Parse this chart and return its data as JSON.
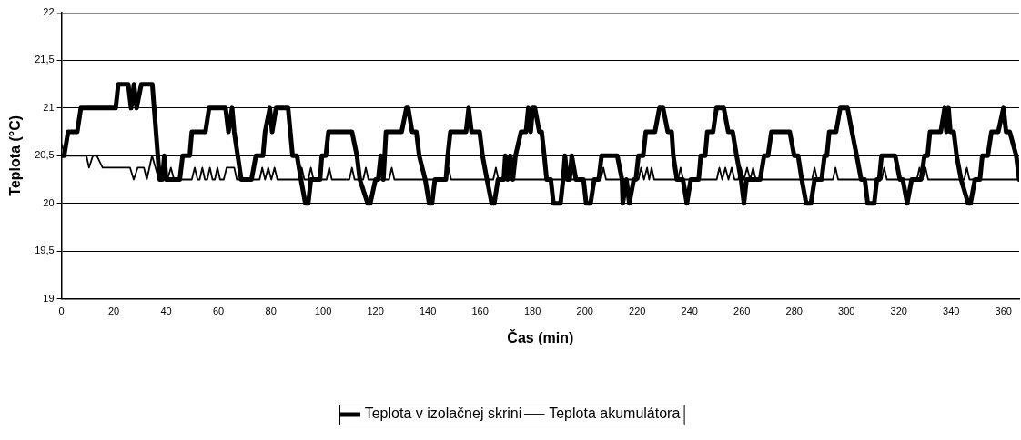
{
  "chart_data": {
    "type": "line",
    "xlabel": "Čas (min)",
    "ylabel": "Teplota (°C)",
    "xlim": [
      0,
      366
    ],
    "xticks": [
      0,
      20,
      40,
      60,
      80,
      100,
      120,
      140,
      160,
      180,
      200,
      220,
      240,
      260,
      280,
      300,
      320,
      340,
      360
    ],
    "ylim": [
      19,
      22
    ],
    "yticks": [
      19,
      {
        "value": 19.5,
        "label": "19,5"
      },
      20,
      {
        "value": 20.5,
        "label": "20,5"
      },
      21,
      {
        "value": 21.5,
        "label": "21,5"
      },
      22
    ],
    "grid": "y",
    "legend": "bottom",
    "marker": "none",
    "line_style": "solid",
    "series": [
      {
        "name": "Teplota v izolačnej skrini",
        "color": "#000000",
        "x": [
          0,
          1,
          2.5,
          6,
          7.4,
          20.7,
          21.7,
          25.5,
          26.6,
          27.7,
          28.7,
          30.5,
          34.7,
          37.5,
          38.5,
          39.3,
          40,
          45.2,
          46.3,
          49,
          49.8,
          55,
          56.4,
          62.7,
          63.8,
          65.2,
          66,
          68.7,
          72.6,
          74.3,
          77,
          77.8,
          79.6,
          80.5,
          82,
          86.6,
          88.3,
          90,
          91.5,
          93.2,
          94.3,
          95.3,
          98.8,
          99.5,
          101,
          102,
          111,
          112.9,
          114,
          117,
          118,
          120,
          121,
          122,
          123,
          124,
          130,
          131.8,
          132.5,
          134,
          135.6,
          136.7,
          139,
          140.5,
          141.6,
          142.7,
          146.9,
          147.6,
          148.6,
          154.6,
          155.6,
          156.7,
          159.8,
          160.9,
          162.6,
          164.4,
          165.4,
          166.8,
          169,
          169.6,
          170.5,
          171.5,
          172.5,
          173.5,
          175.6,
          177.5,
          178.4,
          179.3,
          180.1,
          180.9,
          182.6,
          183.5,
          184.5,
          185.4,
          187,
          188,
          190.7,
          191.7,
          192.4,
          193.3,
          194.2,
          195,
          196.6,
          199.5,
          200.5,
          202.2,
          203.6,
          205.3,
          206.4,
          212.4,
          214.2,
          214.5,
          215.9,
          217,
          218.7,
          219.5,
          220.5,
          222.3,
          223.3,
          226.8,
          228.5,
          229.9,
          231.7,
          233.2,
          233.8,
          235.2,
          237.5,
          239,
          240.5,
          243.5,
          244.3,
          246,
          246.8,
          249,
          250.3,
          253.1,
          254.8,
          256.5,
          258,
          259.7,
          260.8,
          261.8,
          267,
          268.5,
          270,
          271.3,
          278.3,
          280,
          281.5,
          282.9,
          284.6,
          286.4,
          287.8,
          290.5,
          291.6,
          292.5,
          293.4,
          296,
          297.6,
          300.4,
          302.1,
          303.9,
          305.6,
          307,
          308.1,
          310.6,
          311.6,
          312.5,
          313.4,
          318.6,
          320.4,
          321.5,
          323.2,
          324.9,
          328.5,
          329.8,
          331,
          331.9,
          336,
          337.5,
          338.2,
          339,
          339.7,
          341,
          342.1,
          343.8,
          346.5,
          347.4,
          349.1,
          351,
          351.9,
          354,
          355.4,
          358,
          360,
          361,
          362.4,
          364.9,
          366
        ],
        "values": [
          20.5,
          20.5,
          20.75,
          20.75,
          21,
          21,
          21.25,
          21.25,
          21,
          21.25,
          21,
          21.25,
          21.25,
          20.25,
          20.25,
          20.5,
          20.25,
          20.25,
          20.5,
          20.5,
          20.75,
          20.75,
          21,
          21,
          20.75,
          21,
          20.75,
          20.25,
          20.25,
          20.5,
          20.5,
          20.75,
          21,
          20.75,
          21,
          21,
          20.5,
          20.5,
          20.25,
          20,
          20,
          20.25,
          20.25,
          20.5,
          20.5,
          20.75,
          20.75,
          20.5,
          20.25,
          20,
          20,
          20.25,
          20.25,
          20.5,
          20.25,
          20.75,
          20.75,
          21,
          21,
          20.75,
          20.75,
          20.5,
          20.25,
          20,
          20,
          20.25,
          20.25,
          20.5,
          20.75,
          20.75,
          21,
          20.75,
          20.75,
          20.5,
          20.25,
          20,
          20,
          20.25,
          20.25,
          20.5,
          20.25,
          20.5,
          20.25,
          20.5,
          20.75,
          20.75,
          21,
          20.75,
          21,
          21,
          20.75,
          20.75,
          20.5,
          20.25,
          20.25,
          20,
          20,
          20.25,
          20.5,
          20.25,
          20.25,
          20.5,
          20.25,
          20.25,
          20,
          20,
          20.25,
          20.25,
          20.5,
          20.5,
          20.25,
          20,
          20.25,
          20,
          20.25,
          20.25,
          20.5,
          20.5,
          20.75,
          20.75,
          21,
          21,
          20.75,
          20.75,
          20.5,
          20.25,
          20.25,
          20,
          20.25,
          20.25,
          20.5,
          20.5,
          20.75,
          20.75,
          21,
          21,
          20.75,
          20.75,
          20.5,
          20.25,
          20,
          20.25,
          20.25,
          20.5,
          20.5,
          20.75,
          20.75,
          20.5,
          20.5,
          20.25,
          20,
          20,
          20.25,
          20.25,
          20.5,
          20.5,
          20.75,
          20.75,
          21,
          21,
          20.75,
          20.5,
          20.25,
          20.25,
          20,
          20,
          20.25,
          20.25,
          20.5,
          20.5,
          20.25,
          20.25,
          20,
          20.25,
          20.25,
          20.5,
          20.5,
          20.75,
          20.75,
          21,
          20.75,
          21,
          20.75,
          20.75,
          20.5,
          20.25,
          20,
          20,
          20.25,
          20.25,
          20.5,
          20.5,
          20.75,
          20.75,
          21,
          20.75,
          20.75,
          20.5,
          20.25
        ]
      },
      {
        "name": "Teplota akumulátora",
        "color": "#000000",
        "x": [
          0,
          1.5,
          9.5,
          10.5,
          12,
          13.5,
          15.7,
          26.2,
          27.6,
          29.1,
          31.5,
          32.6,
          34.6,
          37.2,
          40.5,
          41.8,
          43,
          49.8,
          50.9,
          52,
          52.8,
          53.8,
          54.8,
          55.7,
          56.7,
          57.7,
          58.6,
          59.6,
          60.6,
          62,
          63.1,
          66,
          67,
          75.7,
          76.7,
          77.8,
          79,
          80.2,
          81.4,
          82.5,
          90.8,
          91.8,
          92.8,
          94.3,
          95.3,
          96.3,
          101.3,
          102.3,
          103.3,
          110,
          111,
          112,
          115.3,
          116.3,
          117.3,
          125.2,
          126.2,
          127.2,
          146.9,
          147.9,
          148.9,
          165,
          166,
          167,
          206.1,
          207.1,
          208.1,
          220.5,
          221.5,
          222.6,
          223.8,
          224.6,
          225.5,
          226.5,
          235.6,
          236.6,
          237.6,
          250.4,
          251.4,
          252.5,
          253.7,
          254.9,
          256.1,
          257.2,
          258.6,
          259.6,
          260.8,
          262,
          263.2,
          264.3,
          265.3,
          286.8,
          287.8,
          288.8,
          294.8,
          295.8,
          296.8,
          313.4,
          314.4,
          315.4,
          326.9,
          327.9,
          329,
          330.2,
          331.2,
          345,
          346,
          347,
          366
        ],
        "values": [
          20.625,
          20.5,
          20.5,
          20.375,
          20.5,
          20.5,
          20.375,
          20.375,
          20.25,
          20.375,
          20.375,
          20.25,
          20.5,
          20.25,
          20.25,
          20.375,
          20.25,
          20.25,
          20.375,
          20.25,
          20.25,
          20.375,
          20.25,
          20.25,
          20.375,
          20.25,
          20.25,
          20.375,
          20.25,
          20.25,
          20.375,
          20.375,
          20.25,
          20.25,
          20.375,
          20.25,
          20.375,
          20.25,
          20.375,
          20.25,
          20.25,
          20.375,
          20.25,
          20.25,
          20.375,
          20.25,
          20.25,
          20.375,
          20.25,
          20.25,
          20.375,
          20.25,
          20.25,
          20.375,
          20.25,
          20.25,
          20.375,
          20.25,
          20.25,
          20.375,
          20.25,
          20.25,
          20.375,
          20.25,
          20.25,
          20.375,
          20.25,
          20.25,
          20.375,
          20.25,
          20.375,
          20.25,
          20.375,
          20.25,
          20.25,
          20.375,
          20.25,
          20.25,
          20.375,
          20.25,
          20.375,
          20.25,
          20.375,
          20.25,
          20.25,
          20.375,
          20.25,
          20.375,
          20.25,
          20.375,
          20.25,
          20.25,
          20.375,
          20.25,
          20.25,
          20.375,
          20.25,
          20.25,
          20.375,
          20.25,
          20.25,
          20.375,
          20.25,
          20.375,
          20.25,
          20.25,
          20.375,
          20.25,
          20.25
        ]
      }
    ]
  }
}
